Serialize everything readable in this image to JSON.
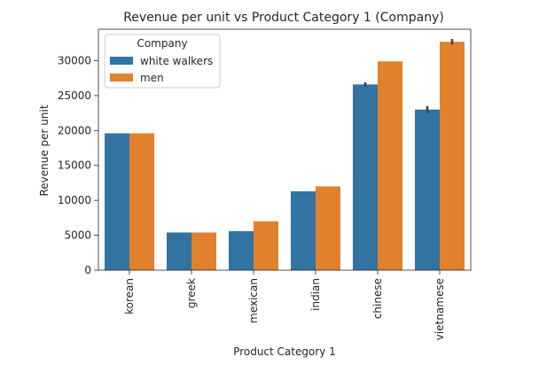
{
  "chart_data": {
    "type": "bar",
    "title": "Revenue per unit vs Product Category 1 (Company)",
    "xlabel": "Product Category 1",
    "ylabel": "Revenue per unit",
    "categories": [
      "korean",
      "greek",
      "mexican",
      "indian",
      "chinese",
      "vietnamese"
    ],
    "series": [
      {
        "name": "white walkers",
        "color": "#3274a1",
        "values": [
          19600,
          5400,
          5600,
          11300,
          26600,
          23000
        ],
        "errors": [
          0,
          0,
          0,
          0,
          300,
          500
        ]
      },
      {
        "name": "men",
        "color": "#e1812c",
        "values": [
          19600,
          5400,
          7000,
          12000,
          29900,
          32700
        ],
        "errors": [
          0,
          0,
          0,
          0,
          0,
          400
        ]
      }
    ],
    "ylim": [
      0,
      34500
    ],
    "yticks": [
      0,
      5000,
      10000,
      15000,
      20000,
      25000,
      30000
    ],
    "legend": {
      "title": "Company",
      "placement": "top-left"
    },
    "grid": false
  }
}
